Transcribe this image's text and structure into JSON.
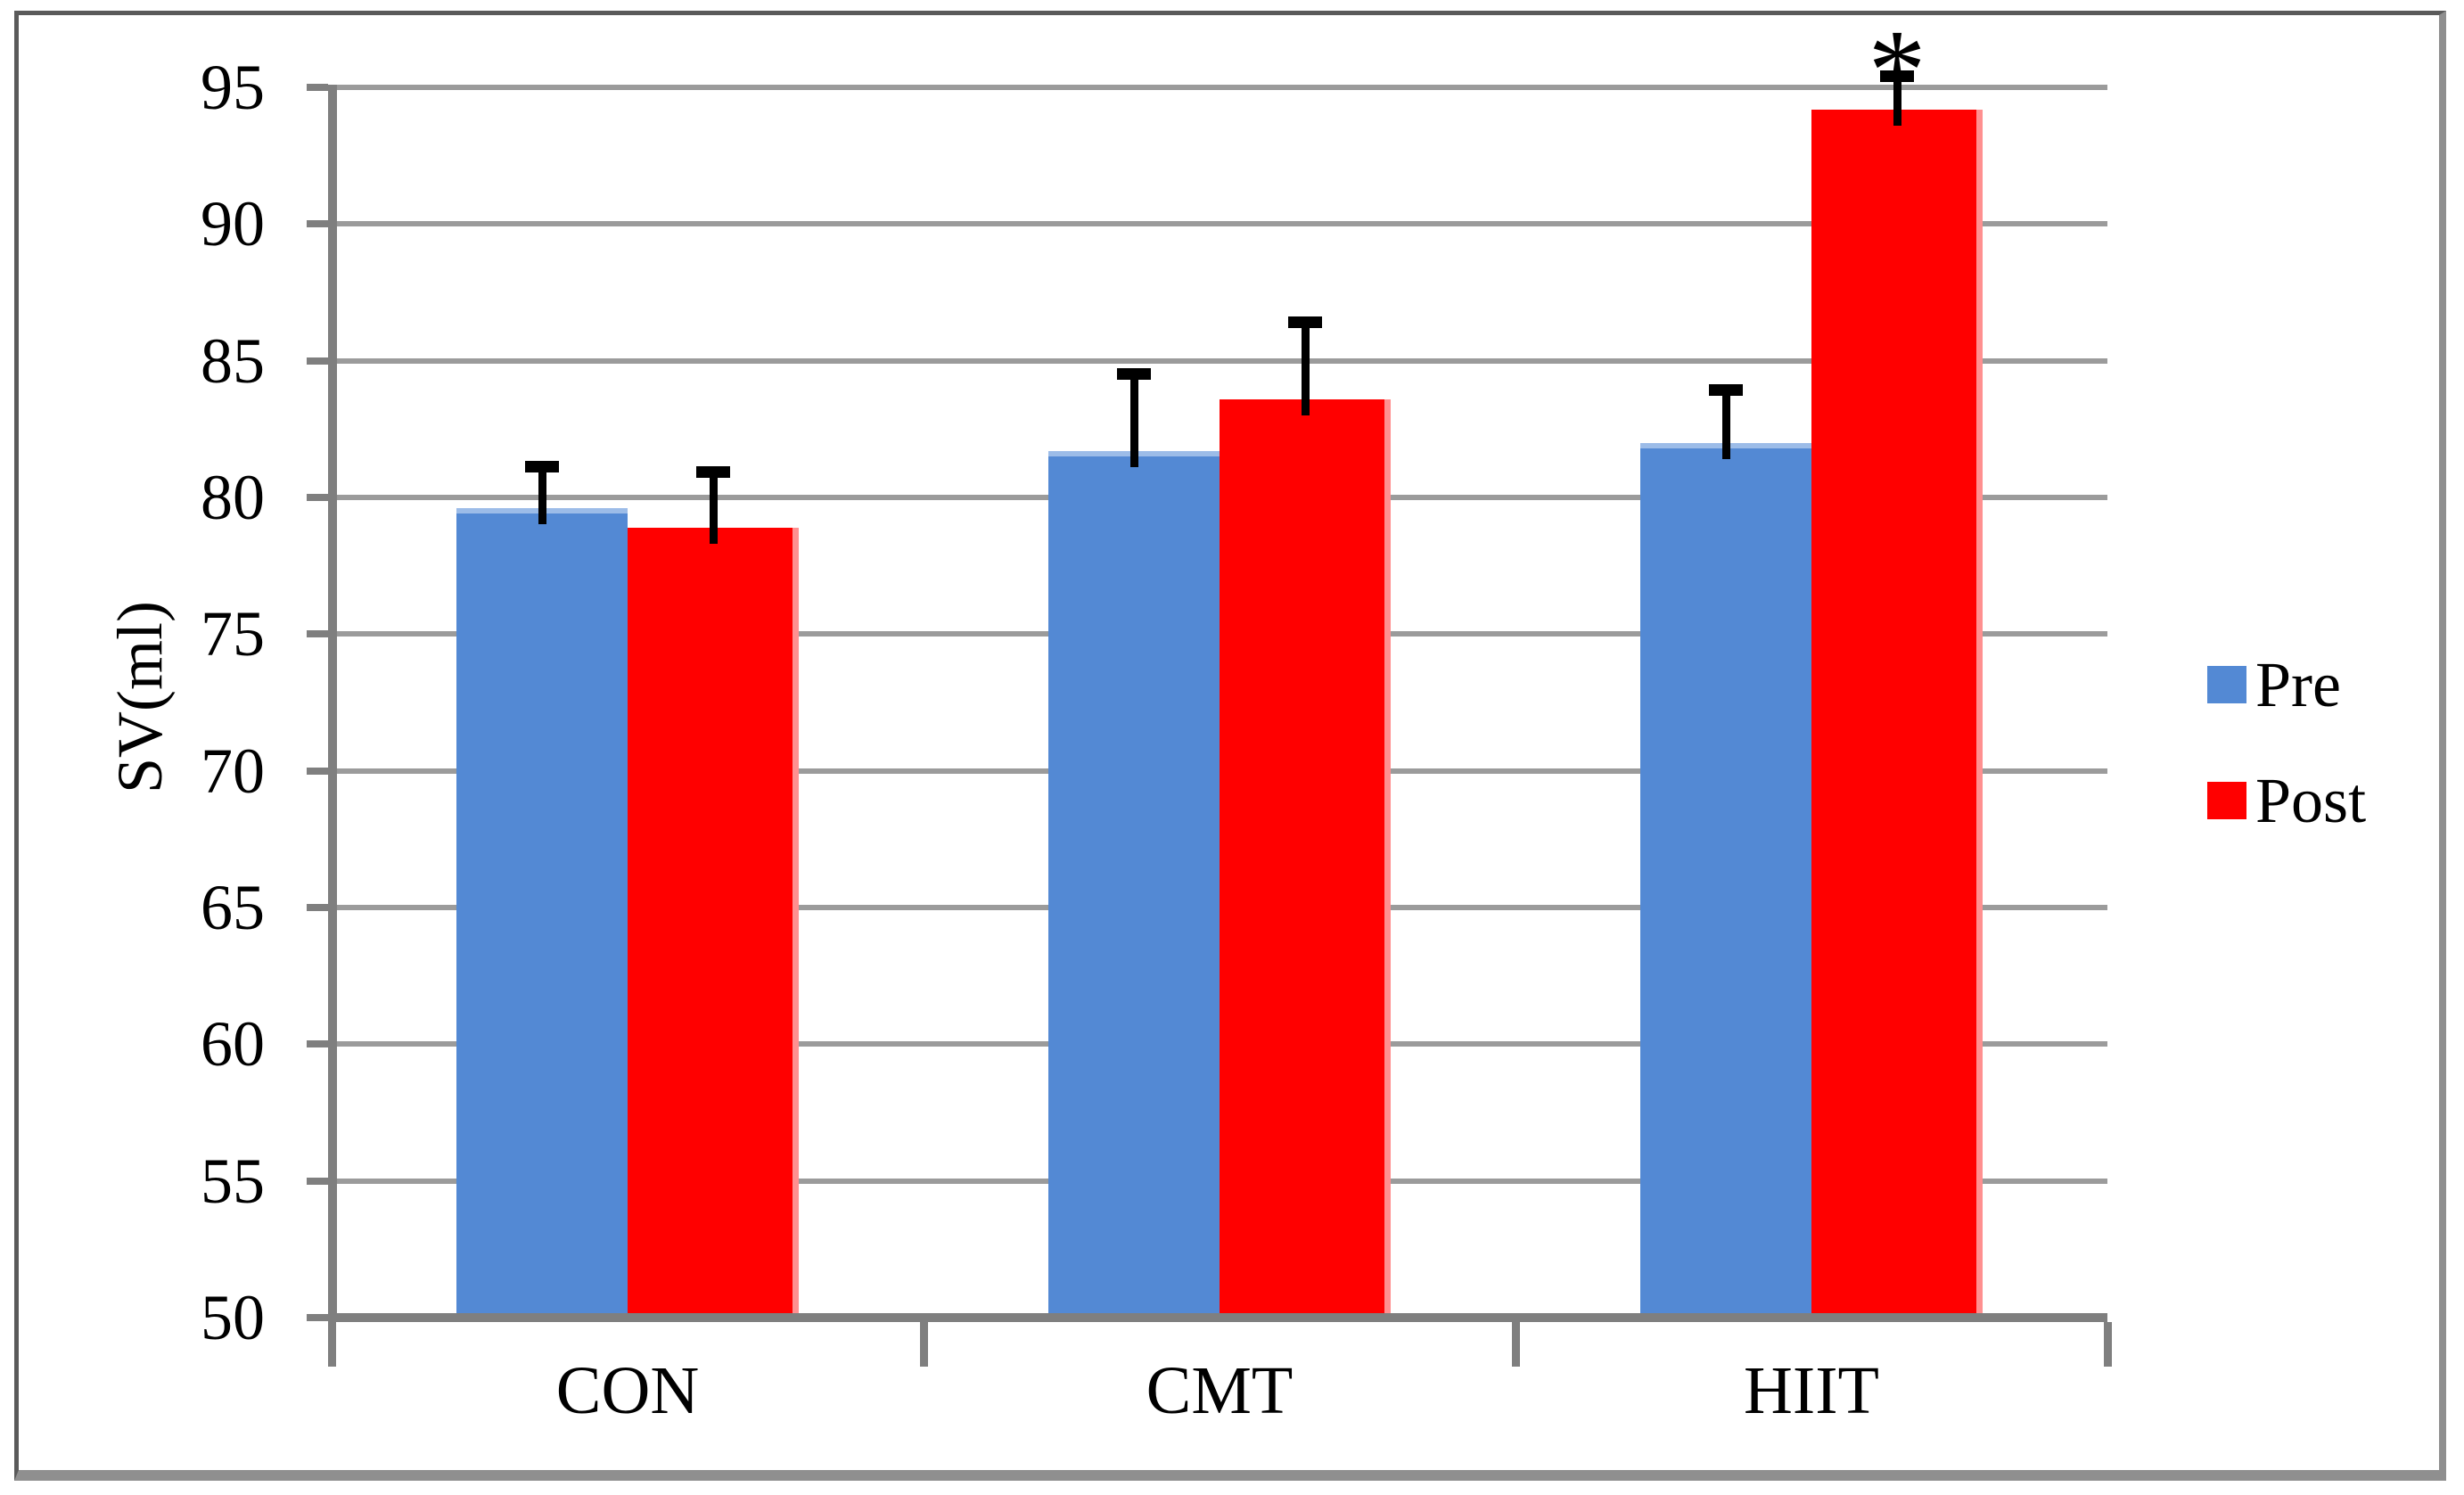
{
  "chart_data": {
    "type": "bar",
    "title": "",
    "ylabel": "SV(ml)",
    "categories": [
      "CON",
      "CMT",
      "HIIT"
    ],
    "series": [
      {
        "name": "Pre",
        "color": "#5389D4",
        "values": [
          79.6,
          81.7,
          82.0
        ],
        "error_up": [
          1.5,
          2.8,
          1.9
        ]
      },
      {
        "name": "Post",
        "color": "#FF0000",
        "values": [
          78.9,
          83.6,
          94.2
        ],
        "error_up": [
          2.0,
          2.8,
          1.2
        ]
      }
    ],
    "ylim": [
      50,
      95
    ],
    "ytick_step": 5,
    "yticks": [
      95,
      90,
      85,
      80,
      75,
      70,
      65,
      60,
      55,
      50
    ],
    "grid": "horizontal",
    "legend_position": "right",
    "annotations": [
      {
        "text": "*",
        "category": "HIIT",
        "series": "Post",
        "position": "above-error-bar"
      }
    ],
    "colors": {
      "gridline": "#9B9B9B",
      "axis": "#7F7F7F",
      "error_bar": "#000000",
      "text": "#000000",
      "pre_edge_highlight": "#9CBCE8",
      "post_edge_highlight": "#FF9090"
    }
  }
}
